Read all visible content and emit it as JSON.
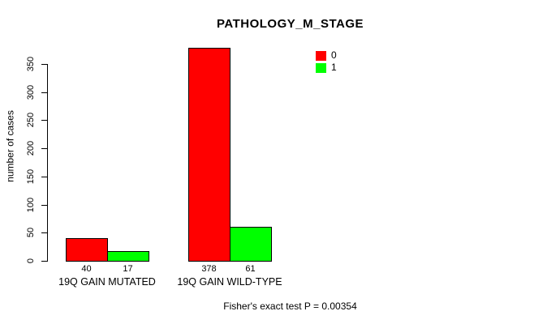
{
  "chart_data": {
    "type": "bar",
    "title": "PATHOLOGY_M_STAGE",
    "ylabel": "number of cases",
    "xlabel": "",
    "caption": "Fisher's exact test P = 0.00354",
    "categories": [
      "19Q GAIN MUTATED",
      "19Q GAIN WILD-TYPE"
    ],
    "series": [
      {
        "name": "0",
        "color": "#ff0000",
        "values": [
          40,
          378
        ]
      },
      {
        "name": "1",
        "color": "#00ff00",
        "values": [
          17,
          61
        ]
      }
    ],
    "yticks": [
      0,
      50,
      100,
      150,
      200,
      250,
      300,
      350
    ],
    "ylim": [
      0,
      350
    ],
    "grid": false,
    "legend_position": "top-right",
    "background_color": "#ffffff",
    "axis_color": "#000000"
  }
}
